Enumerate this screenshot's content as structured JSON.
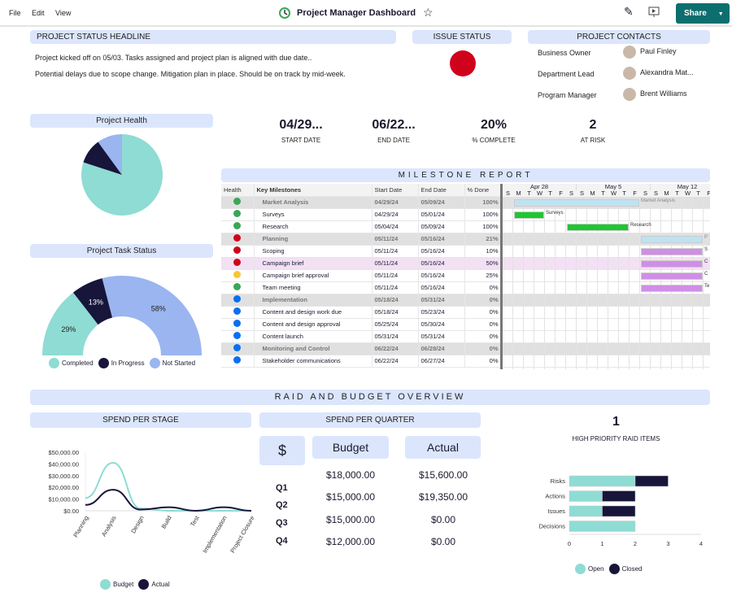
{
  "menu": {
    "file": "File",
    "edit": "Edit",
    "view": "View"
  },
  "title": "Project Manager Dashboard",
  "share_label": "Share",
  "headline": {
    "title": "PROJECT STATUS HEADLINE",
    "lines": [
      "Project kicked off on 05/03. Tasks assigned and project plan is aligned with due date..",
      "Potential delays due to scope change. Mitigation plan in place. Should be on track by mid-week."
    ]
  },
  "issue_status": {
    "title": "ISSUE STATUS",
    "color": "#d0021b"
  },
  "contacts": {
    "title": "PROJECT CONTACTS",
    "items": [
      {
        "role": "Business Owner",
        "name": "Paul Finley"
      },
      {
        "role": "Department Lead",
        "name": "Alexandra Mat..."
      },
      {
        "role": "Program Manager",
        "name": "Brent Williams"
      }
    ]
  },
  "kpis": [
    {
      "value": "04/29...",
      "label": "START DATE"
    },
    {
      "value": "06/22...",
      "label": "END DATE"
    },
    {
      "value": "20%",
      "label": "% COMPLETE"
    },
    {
      "value": "2",
      "label": "AT RISK"
    }
  ],
  "milestone": {
    "title": "MILESTONE REPORT",
    "headers": [
      "Health",
      "Key Milestones",
      "Start Date",
      "End Date",
      "% Done"
    ],
    "weeks": [
      "Apr 28",
      "May 5",
      "May 12"
    ],
    "days": [
      "S",
      "M",
      "T",
      "W",
      "T",
      "F",
      "S",
      "S",
      "M",
      "T",
      "W",
      "T",
      "F",
      "S",
      "S",
      "M",
      "T",
      "W",
      "T",
      "F"
    ],
    "rows": [
      {
        "health": "#3aa757",
        "name": "Market Analysis",
        "start": "04/29/24",
        "end": "05/09/24",
        "done": "100%",
        "group": true,
        "bar": [
          1,
          12
        ],
        "bar_color": "#bde3f3",
        "bar_label": "Market Analysis"
      },
      {
        "health": "#3aa757",
        "name": "Surveys",
        "start": "04/29/24",
        "end": "05/01/24",
        "done": "100%",
        "bar": [
          1,
          3
        ],
        "bar_color": "#1cc82e",
        "bar_label": "Surveys"
      },
      {
        "health": "#3aa757",
        "name": "Research",
        "start": "05/04/24",
        "end": "05/09/24",
        "done": "100%",
        "bar": [
          6,
          11
        ],
        "bar_color": "#1cc82e",
        "bar_label": "Research"
      },
      {
        "health": "#d0021b",
        "name": "Planning",
        "start": "05/11/24",
        "end": "05/16/24",
        "done": "21%",
        "group": true,
        "bar": [
          13,
          18
        ],
        "bar_color": "#bde3f3",
        "bar_label": "P"
      },
      {
        "health": "#d0021b",
        "name": "Scoping",
        "start": "05/11/24",
        "end": "05/16/24",
        "done": "10%",
        "bar": [
          13,
          18
        ],
        "bar_color": "#d08ee6",
        "bar_label": "S"
      },
      {
        "health": "#d0021b",
        "name": "Campaign brief",
        "start": "05/11/24",
        "end": "05/16/24",
        "done": "50%",
        "highlight": true,
        "bar": [
          13,
          18
        ],
        "bar_color": "#d08ee6",
        "bar_label": "C"
      },
      {
        "health": "#f8c630",
        "name": "Campaign brief approval",
        "start": "05/11/24",
        "end": "05/16/24",
        "done": "25%",
        "bar": [
          13,
          18
        ],
        "bar_color": "#d08ee6",
        "bar_label": "C"
      },
      {
        "health": "#3aa757",
        "name": "Team meeting",
        "start": "05/11/24",
        "end": "05/16/24",
        "done": "0%",
        "bar": [
          13,
          18
        ],
        "bar_color": "#d08ee6",
        "bar_label": "Te"
      },
      {
        "health": "#0b6ff0",
        "name": "Implementation",
        "start": "05/18/24",
        "end": "05/31/24",
        "done": "0%",
        "group": true
      },
      {
        "health": "#0b6ff0",
        "name": "Content and design work due",
        "start": "05/18/24",
        "end": "05/23/24",
        "done": "0%"
      },
      {
        "health": "#0b6ff0",
        "name": "Content and design approval",
        "start": "05/25/24",
        "end": "05/30/24",
        "done": "0%"
      },
      {
        "health": "#0b6ff0",
        "name": "Content launch",
        "start": "05/31/24",
        "end": "05/31/24",
        "done": "0%"
      },
      {
        "health": "#0b6ff0",
        "name": "Monitoring and Control",
        "start": "06/22/24",
        "end": "06/28/24",
        "done": "0%",
        "group": true
      },
      {
        "health": "#0b6ff0",
        "name": "Stakeholder communications",
        "start": "06/22/24",
        "end": "06/27/24",
        "done": "0%"
      }
    ]
  },
  "raid_title": "RAID AND BUDGET OVERVIEW",
  "quarter": {
    "title": "SPEND PER QUARTER",
    "symbol": "$",
    "budget_label": "Budget",
    "actual_label": "Actual",
    "quarters": [
      "Q1",
      "Q2",
      "Q3",
      "Q4"
    ],
    "budget": [
      "$18,000.00",
      "$15,000.00",
      "$15,000.00",
      "$12,000.00"
    ],
    "actual": [
      "$15,600.00",
      "$19,350.00",
      "$0.00",
      "$0.00"
    ]
  },
  "raid": {
    "count": "1",
    "label": "HIGH PRIORITY RAID ITEMS"
  },
  "colors": {
    "teal": "#8edcd3",
    "navy": "#17153a",
    "blue": "#9ab5f0"
  },
  "chart_data": [
    {
      "type": "pie",
      "title": "Project Health",
      "slices": [
        {
          "name": "Completed",
          "value": 80
        },
        {
          "name": "In Progress",
          "value": 10
        },
        {
          "name": "Not Started",
          "value": 10
        }
      ]
    },
    {
      "type": "pie",
      "title": "Project Task Status",
      "variant": "half-donut",
      "slices": [
        {
          "name": "Completed",
          "value": 29,
          "label": "29%"
        },
        {
          "name": "In Progress",
          "value": 13,
          "label": "13%"
        },
        {
          "name": "Not Started",
          "value": 58,
          "label": "58%"
        }
      ],
      "legend": [
        "Completed",
        "In Progress",
        "Not Started"
      ],
      "legend_position": "bottom"
    },
    {
      "type": "line",
      "title": "SPEND PER STAGE",
      "categories": [
        "Planning",
        "Analysis",
        "Design",
        "Build",
        "Test",
        "Implementation",
        "Project Closure"
      ],
      "series": [
        {
          "name": "Budget",
          "values": [
            11000,
            41000,
            2000,
            0,
            0,
            0,
            0
          ]
        },
        {
          "name": "Actual",
          "values": [
            5000,
            18000,
            1000,
            3000,
            0,
            3000,
            0
          ]
        }
      ],
      "yticks": [
        "$0.00",
        "$10,000.00",
        "$20,000.00",
        "$30,000.00",
        "$40,000.00",
        "$50,000.00"
      ],
      "ylim": [
        0,
        50000
      ],
      "legend_position": "bottom"
    },
    {
      "type": "bar",
      "orientation": "horizontal",
      "stacked": true,
      "categories": [
        "Risks",
        "Actions",
        "Issues",
        "Decisions"
      ],
      "series": [
        {
          "name": "Open",
          "values": [
            2,
            1,
            1,
            2
          ]
        },
        {
          "name": "Closed",
          "values": [
            1,
            1,
            1,
            0
          ]
        }
      ],
      "xticks": [
        "0",
        "1",
        "2",
        "3",
        "4"
      ],
      "xlim": [
        0,
        4
      ],
      "legend_position": "bottom"
    }
  ]
}
